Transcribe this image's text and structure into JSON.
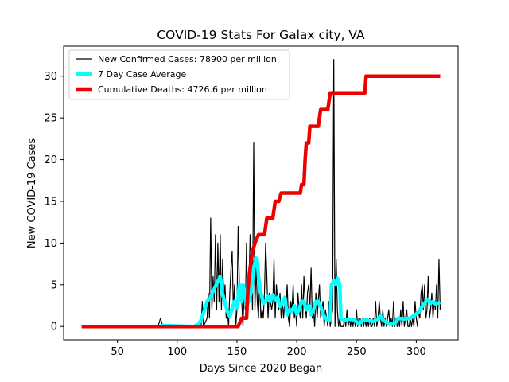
{
  "chart_data": {
    "type": "line",
    "title": "COVID-19 Stats For Galax city, VA",
    "xlabel": "Days Since 2020 Began",
    "ylabel": "New COVID-19 Cases",
    "xlim": [
      5,
      335
    ],
    "ylim": [
      -1.6,
      33.6
    ],
    "x_ticks": [
      50,
      100,
      150,
      200,
      250,
      300
    ],
    "y_ticks": [
      0,
      5,
      10,
      15,
      20,
      25,
      30
    ],
    "legend_position": "top-left",
    "grid": false,
    "series": [
      {
        "name": "New Confirmed Cases: 78900 per million",
        "color": "#000000",
        "points": [
          [
            20,
            0
          ],
          [
            84,
            0
          ],
          [
            86,
            1
          ],
          [
            88,
            0
          ],
          [
            120,
            0
          ],
          [
            121,
            3
          ],
          [
            122,
            0
          ],
          [
            125,
            1
          ],
          [
            126,
            4
          ],
          [
            127,
            1
          ],
          [
            128,
            13
          ],
          [
            129,
            2
          ],
          [
            130,
            6
          ],
          [
            131,
            3
          ],
          [
            132,
            11
          ],
          [
            133,
            2
          ],
          [
            134,
            10
          ],
          [
            135,
            3
          ],
          [
            136,
            11
          ],
          [
            137,
            2
          ],
          [
            138,
            8
          ],
          [
            139,
            3
          ],
          [
            140,
            5
          ],
          [
            141,
            1
          ],
          [
            142,
            2
          ],
          [
            143,
            0
          ],
          [
            144,
            4
          ],
          [
            145,
            7
          ],
          [
            146,
            9
          ],
          [
            147,
            2
          ],
          [
            148,
            5
          ],
          [
            149,
            0
          ],
          [
            150,
            2
          ],
          [
            151,
            12
          ],
          [
            152,
            5
          ],
          [
            153,
            4
          ],
          [
            154,
            3
          ],
          [
            155,
            0
          ],
          [
            156,
            4
          ],
          [
            157,
            2
          ],
          [
            158,
            10
          ],
          [
            159,
            1
          ],
          [
            160,
            5
          ],
          [
            161,
            11
          ],
          [
            162,
            8
          ],
          [
            163,
            2
          ],
          [
            164,
            22
          ],
          [
            165,
            2
          ],
          [
            166,
            7
          ],
          [
            167,
            3
          ],
          [
            168,
            1
          ],
          [
            169,
            6
          ],
          [
            170,
            1
          ],
          [
            171,
            2
          ],
          [
            172,
            1
          ],
          [
            173,
            4
          ],
          [
            174,
            10
          ],
          [
            175,
            6
          ],
          [
            176,
            1
          ],
          [
            177,
            4
          ],
          [
            178,
            3
          ],
          [
            179,
            2
          ],
          [
            180,
            3
          ],
          [
            181,
            8
          ],
          [
            182,
            1
          ],
          [
            183,
            5
          ],
          [
            184,
            3
          ],
          [
            185,
            2
          ],
          [
            186,
            4
          ],
          [
            187,
            1
          ],
          [
            188,
            3
          ],
          [
            189,
            1
          ],
          [
            190,
            3
          ],
          [
            191,
            2
          ],
          [
            192,
            5
          ],
          [
            193,
            1
          ],
          [
            194,
            0
          ],
          [
            195,
            3
          ],
          [
            196,
            2
          ],
          [
            197,
            5
          ],
          [
            198,
            1
          ],
          [
            199,
            2
          ],
          [
            200,
            0
          ],
          [
            201,
            4
          ],
          [
            202,
            2
          ],
          [
            203,
            1
          ],
          [
            204,
            5
          ],
          [
            205,
            1
          ],
          [
            206,
            6
          ],
          [
            207,
            3
          ],
          [
            208,
            1
          ],
          [
            209,
            4
          ],
          [
            210,
            5
          ],
          [
            211,
            2
          ],
          [
            212,
            7
          ],
          [
            213,
            1
          ],
          [
            214,
            2
          ],
          [
            215,
            0
          ],
          [
            216,
            4
          ],
          [
            217,
            1
          ],
          [
            218,
            3
          ],
          [
            219,
            5
          ],
          [
            220,
            1
          ],
          [
            221,
            2
          ],
          [
            222,
            3
          ],
          [
            223,
            0
          ],
          [
            224,
            2
          ],
          [
            225,
            1
          ],
          [
            226,
            0
          ],
          [
            227,
            3
          ],
          [
            228,
            0
          ],
          [
            229,
            1
          ],
          [
            230,
            2
          ],
          [
            231,
            32
          ],
          [
            232,
            0
          ],
          [
            233,
            8
          ],
          [
            234,
            2
          ],
          [
            235,
            0
          ],
          [
            236,
            1
          ],
          [
            237,
            0
          ],
          [
            238,
            0
          ],
          [
            239,
            0
          ],
          [
            240,
            1
          ],
          [
            241,
            0
          ],
          [
            242,
            2
          ],
          [
            243,
            0
          ],
          [
            244,
            1
          ],
          [
            245,
            0
          ],
          [
            246,
            1
          ],
          [
            247,
            0
          ],
          [
            248,
            1
          ],
          [
            249,
            0
          ],
          [
            250,
            2
          ],
          [
            251,
            0
          ],
          [
            252,
            1
          ],
          [
            253,
            1
          ],
          [
            254,
            0
          ],
          [
            255,
            1
          ],
          [
            256,
            0
          ],
          [
            257,
            1
          ],
          [
            258,
            0
          ],
          [
            259,
            1
          ],
          [
            260,
            0
          ],
          [
            261,
            1
          ],
          [
            262,
            0
          ],
          [
            263,
            0
          ],
          [
            264,
            1
          ],
          [
            265,
            0
          ],
          [
            266,
            3
          ],
          [
            267,
            0
          ],
          [
            268,
            1
          ],
          [
            269,
            3
          ],
          [
            270,
            1
          ],
          [
            271,
            0
          ],
          [
            272,
            2
          ],
          [
            273,
            0
          ],
          [
            274,
            1
          ],
          [
            275,
            0
          ],
          [
            276,
            1
          ],
          [
            277,
            2
          ],
          [
            278,
            0
          ],
          [
            279,
            1
          ],
          [
            280,
            0
          ],
          [
            281,
            3
          ],
          [
            282,
            0
          ],
          [
            283,
            1
          ],
          [
            284,
            0
          ],
          [
            285,
            1
          ],
          [
            286,
            0
          ],
          [
            287,
            2
          ],
          [
            288,
            0
          ],
          [
            289,
            3
          ],
          [
            290,
            0
          ],
          [
            291,
            1
          ],
          [
            292,
            2
          ],
          [
            293,
            0
          ],
          [
            294,
            0
          ],
          [
            295,
            1
          ],
          [
            296,
            0
          ],
          [
            297,
            1
          ],
          [
            298,
            0
          ],
          [
            299,
            3
          ],
          [
            300,
            1
          ],
          [
            301,
            0
          ],
          [
            302,
            2
          ],
          [
            303,
            1
          ],
          [
            304,
            4
          ],
          [
            305,
            5
          ],
          [
            306,
            2
          ],
          [
            307,
            5
          ],
          [
            308,
            1
          ],
          [
            309,
            2
          ],
          [
            310,
            6
          ],
          [
            311,
            1
          ],
          [
            312,
            2
          ],
          [
            313,
            4
          ],
          [
            314,
            1
          ],
          [
            315,
            3
          ],
          [
            316,
            2
          ],
          [
            317,
            5
          ],
          [
            318,
            1
          ],
          [
            319,
            8
          ],
          [
            320,
            2
          ]
        ]
      },
      {
        "name": "7 Day Case Average",
        "color": "#00ffff",
        "points": [
          [
            86,
            0.1
          ],
          [
            90,
            0.1
          ],
          [
            114,
            0
          ],
          [
            118,
            0.3
          ],
          [
            120,
            0.8
          ],
          [
            123,
            2
          ],
          [
            125,
            3
          ],
          [
            128,
            3.5
          ],
          [
            130,
            4.2
          ],
          [
            132,
            4.8
          ],
          [
            134,
            5.4
          ],
          [
            136,
            6
          ],
          [
            137,
            5
          ],
          [
            138,
            3.8
          ],
          [
            140,
            2.8
          ],
          [
            142,
            1.8
          ],
          [
            144,
            1.2
          ],
          [
            146,
            2.2
          ],
          [
            148,
            3
          ],
          [
            150,
            2.2
          ],
          [
            151,
            3.5
          ],
          [
            152,
            5
          ],
          [
            153,
            3.5
          ],
          [
            154,
            3
          ],
          [
            155,
            5
          ],
          [
            156,
            4.5
          ],
          [
            157,
            3.5
          ],
          [
            158,
            2.5
          ],
          [
            160,
            3
          ],
          [
            162,
            4.2
          ],
          [
            164,
            7
          ],
          [
            166,
            8.2
          ],
          [
            167,
            8
          ],
          [
            168,
            6
          ],
          [
            170,
            4
          ],
          [
            172,
            2.8
          ],
          [
            174,
            3
          ],
          [
            176,
            3.6
          ],
          [
            178,
            3
          ],
          [
            180,
            3.8
          ],
          [
            182,
            3.2
          ],
          [
            184,
            3.5
          ],
          [
            186,
            2.4
          ],
          [
            188,
            2.8
          ],
          [
            190,
            3.5
          ],
          [
            192,
            1.4
          ],
          [
            194,
            2
          ],
          [
            196,
            1.8
          ],
          [
            198,
            2.5
          ],
          [
            200,
            1.5
          ],
          [
            202,
            2
          ],
          [
            204,
            3
          ],
          [
            206,
            3
          ],
          [
            208,
            2
          ],
          [
            210,
            2.5
          ],
          [
            212,
            1.4
          ],
          [
            214,
            2
          ],
          [
            216,
            3
          ],
          [
            218,
            3
          ],
          [
            220,
            2.4
          ],
          [
            222,
            1.5
          ],
          [
            224,
            1
          ],
          [
            226,
            0.8
          ],
          [
            228,
            0.8
          ],
          [
            229,
            5
          ],
          [
            231,
            5.5
          ],
          [
            233,
            5
          ],
          [
            234,
            5.8
          ],
          [
            236,
            5
          ],
          [
            237,
            1
          ],
          [
            240,
            0.7
          ],
          [
            244,
            0.9
          ],
          [
            248,
            0.8
          ],
          [
            252,
            0.3
          ],
          [
            256,
            0.8
          ],
          [
            260,
            0.7
          ],
          [
            264,
            0.6
          ],
          [
            268,
            0.9
          ],
          [
            270,
            1.3
          ],
          [
            272,
            0.8
          ],
          [
            275,
            0.5
          ],
          [
            278,
            0.3
          ],
          [
            282,
            0.3
          ],
          [
            285,
            1
          ],
          [
            290,
            0.9
          ],
          [
            295,
            1
          ],
          [
            298,
            1.3
          ],
          [
            302,
            1.7
          ],
          [
            304,
            2.2
          ],
          [
            306,
            2.6
          ],
          [
            308,
            3
          ],
          [
            310,
            3.2
          ],
          [
            312,
            2.8
          ],
          [
            314,
            3
          ],
          [
            316,
            2.7
          ],
          [
            320,
            2.9
          ]
        ]
      },
      {
        "name": "Cumulative Deaths: 4726.6 per million",
        "color": "#ee0000",
        "points": [
          [
            20,
            0
          ],
          [
            151,
            0
          ],
          [
            154,
            1
          ],
          [
            158,
            1
          ],
          [
            159,
            4
          ],
          [
            161,
            7
          ],
          [
            163,
            9
          ],
          [
            165,
            10
          ],
          [
            168,
            11
          ],
          [
            173,
            11
          ],
          [
            175,
            13
          ],
          [
            180,
            13
          ],
          [
            182,
            15
          ],
          [
            185,
            15
          ],
          [
            187,
            16
          ],
          [
            203,
            16
          ],
          [
            204,
            17
          ],
          [
            206,
            17
          ],
          [
            207,
            20
          ],
          [
            208,
            22
          ],
          [
            210,
            22
          ],
          [
            211,
            24
          ],
          [
            218,
            24
          ],
          [
            220,
            26
          ],
          [
            226,
            26
          ],
          [
            228,
            28
          ],
          [
            241,
            28
          ],
          [
            257,
            28
          ],
          [
            258,
            30
          ],
          [
            320,
            30
          ]
        ]
      }
    ]
  }
}
